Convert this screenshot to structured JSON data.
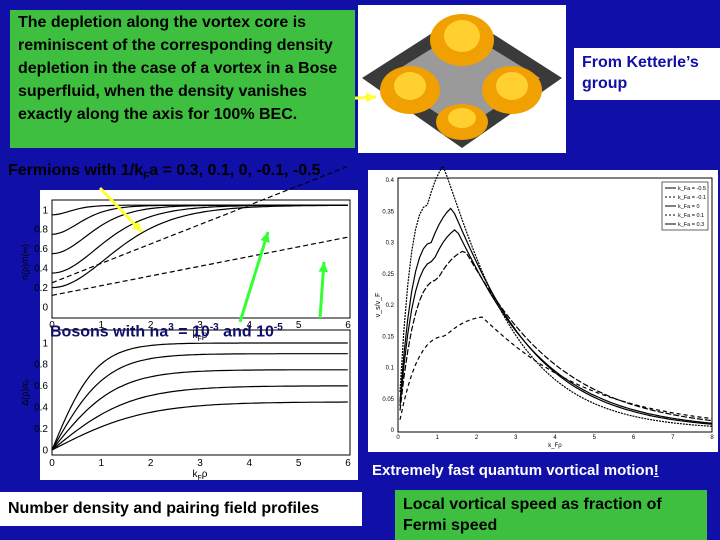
{
  "top_note": "The depletion along the vortex core is reminiscent of the corresponding density depletion in the case of a vortex in a Bose superfluid, when the density vanishes exactly along the axis for 100% BEC.",
  "credit": "From Ketterle’s group",
  "fermions_label": {
    "before": "Fermions with 1/k",
    "sub": "F",
    "after": "a = 0.3, 0.1, 0, -0.1, -0.5"
  },
  "bosons_label": {
    "text1": "Bosons with na",
    "sup1": "3",
    "text2": " = 10",
    "sup2": "-3",
    "text3": " and 10",
    "sup3": "-5"
  },
  "density_plot": {
    "ylabel": "n(ρ)/n(∞)",
    "xlabel": {
      "main": "k",
      "sub": "F",
      "end": "ρ"
    },
    "yticks": [
      "0",
      "0.2",
      "0.4",
      "0.6",
      "0.8",
      "1"
    ],
    "xticks": [
      "0",
      "1",
      "2",
      "3",
      "4",
      "5",
      "6"
    ]
  },
  "gap_plot": {
    "ylabel": "Δ(ρ)/ε",
    "ylabel_sub": "F",
    "xlabel": {
      "main": "k",
      "sub": "F",
      "end": "ρ"
    },
    "yticks": [
      "0",
      "0.2",
      "0.4",
      "0.6",
      "0.8",
      "1"
    ],
    "xticks": [
      "0",
      "1",
      "2",
      "3",
      "4",
      "5",
      "6"
    ]
  },
  "speed_plot": {
    "ylabel": "v_s/v_F",
    "xlabel": "k_Fρ",
    "yticks": [
      "0",
      "0.05",
      "0.1",
      "0.15",
      "0.2",
      "0.25",
      "0.3",
      "0.35",
      "0.4"
    ],
    "xticks": [
      "0",
      "1",
      "2",
      "3",
      "4",
      "5",
      "6",
      "7",
      "8"
    ],
    "legend": [
      "k_Fa = -0.5",
      "k_Fa = -0.1",
      "k_Fa = 0",
      "k_Fa = 0.1",
      "k_Fa = 0.3"
    ]
  },
  "speed_caption": {
    "main": "Extremely fast quantum vortical motion",
    "end": "!"
  },
  "left_caption": "Number density and pairing field profiles",
  "right_caption": "Local vortical speed as fraction of Fermi speed"
}
